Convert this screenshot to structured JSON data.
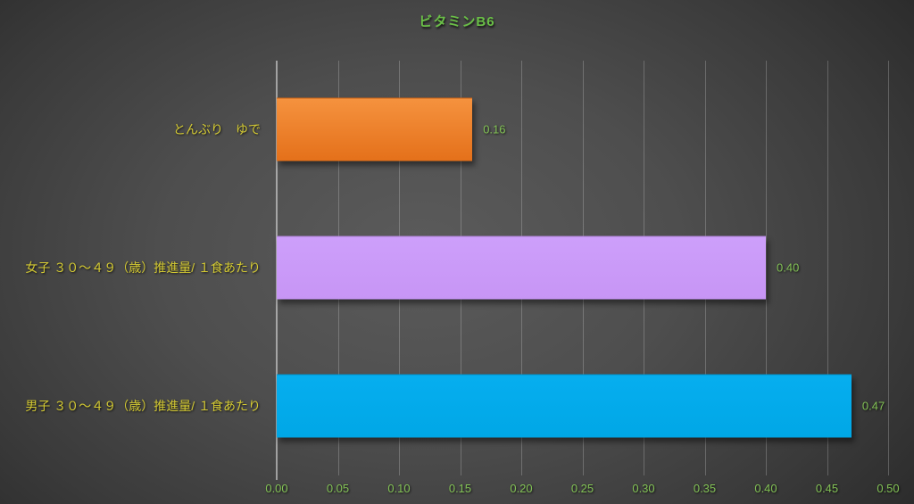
{
  "chart_data": {
    "type": "bar",
    "orientation": "horizontal",
    "title": "ビタミンB6",
    "categories": [
      "とんぶり　ゆで",
      "女子 ３０～４９（歳）推進量/ １食あたり",
      "男子 ３０～４９（歳）推進量/ １食あたり"
    ],
    "values": [
      0.16,
      0.4,
      0.47
    ],
    "value_labels": [
      "0.16",
      "0.40",
      "0.47"
    ],
    "xlim": [
      0,
      0.5
    ],
    "x_ticks": [
      "0.00",
      "0.05",
      "0.10",
      "0.15",
      "0.20",
      "0.25",
      "0.30",
      "0.35",
      "0.40",
      "0.45",
      "0.50"
    ],
    "xlabel": "",
    "ylabel": "",
    "grid": "vertical",
    "legend": "none",
    "bar_colors": [
      {
        "top": "#f5923e",
        "bottom": "#e4701a"
      },
      {
        "top": "#cd9ffb",
        "bottom": "#c795f5"
      },
      {
        "top": "#06aeef",
        "bottom": "#00a7e6"
      }
    ],
    "colors": {
      "title": "#6abf47",
      "category_label": "#d4ca33",
      "value_label": "#82c155",
      "tick_label": "#82c155"
    }
  }
}
